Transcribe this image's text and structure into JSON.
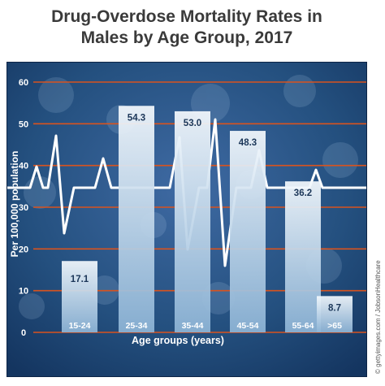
{
  "chart_data": {
    "type": "bar",
    "title_lines": [
      "Drug-Overdose Mortality Rates in",
      "Males by Age Group, 2017"
    ],
    "xlabel": "Age groups (years)",
    "ylabel": "Per 100,000 population",
    "categories": [
      "15-24",
      "25-34",
      "35-44",
      "45-54",
      "55-64",
      ">65"
    ],
    "values": [
      17.1,
      54.3,
      53.0,
      48.3,
      36.2,
      8.7
    ],
    "data_labels": [
      "17.1",
      "54.3",
      "53.0",
      "48.3",
      "36.2",
      "8.7"
    ],
    "ylim": [
      0,
      60
    ],
    "yticks": [
      0,
      10,
      20,
      30,
      40,
      50,
      60
    ],
    "grid": true
  },
  "credit": "© gettyimages.com / JobsonHealthcare",
  "colors": {
    "background": "#1a3f73",
    "grid": "#d9531e",
    "bar_top": "#f2f8fd",
    "bar_bottom": "#8fb6d8",
    "heartbeat": "#ffffff",
    "text": "#ffffff",
    "label_text": "#1b3658",
    "title_text": "#3a3a3a"
  }
}
